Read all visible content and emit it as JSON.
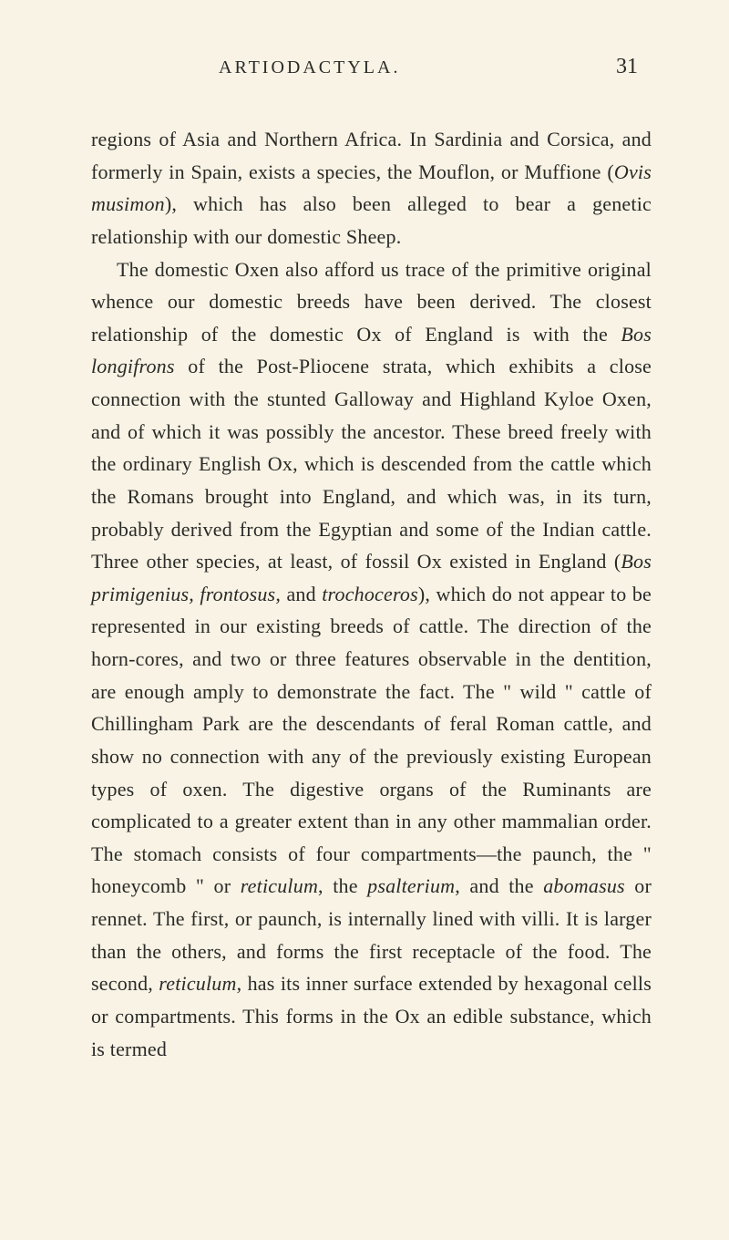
{
  "header": {
    "title": "ARTIODACTYLA.",
    "page_number": "31"
  },
  "paragraphs": {
    "p1_part1": "regions of Asia and Northern Africa. In Sardinia and Corsica, and formerly in Spain, exists a species, the Mouflon, or Muffione (",
    "p1_italic1": "Ovis musimon",
    "p1_part2": "), which has also been alleged to bear a genetic relationship with our domestic Sheep.",
    "p2_part1": "The domestic Oxen also afford us trace of the primi­tive original whence our domestic breeds have been derived. The closest relationship of the domestic Ox of England is with the ",
    "p2_italic1": "Bos longifrons",
    "p2_part2": " of the Post-Pliocene strata, which exhibits a close connection with the stunted Galloway and Highland Kyloe Oxen, and of which it was possibly the ancestor. These breed freely with the ordinary English Ox, which is descended from the cattle which the Romans brought into England, and which was, in its turn, probably derived from the Egyp­tian and some of the Indian cattle. Three other species, at least, of fossil Ox existed in England (",
    "p2_italic2": "Bos primigenius, frontosus,",
    "p2_part3": " and ",
    "p2_italic3": "trochoceros",
    "p2_part4": "), which do not appear to be represented in our existing breeds of cattle. The direc­tion of the horn-cores, and two or three features observ­able in the dentition, are enough amply to demonstrate the fact. The \" wild \" cattle of Chillingham Park are the descendants of feral Roman cattle, and show no connection with any of the previously existing Euro­pean types of oxen. The digestive organs of the Ruminants are complicated to a greater extent than in any other mammalian order. The stomach consists of four compartments—the paunch, the \" honeycomb \" or ",
    "p2_italic4": "reticulum",
    "p2_part5": ", the ",
    "p2_italic5": "psalterium",
    "p2_part6": ", and the ",
    "p2_italic6": "abomasus",
    "p2_part7": " or rennet. The first, or paunch, is internally lined with villi. It is larger than the others, and forms the first receptacle of the food. The second, ",
    "p2_italic7": "reticulum",
    "p2_part8": ", has its inner surface extended by hexagonal cells or compartments. This forms in the Ox an edible substance, which is termed"
  },
  "colors": {
    "background": "#f8f3e4",
    "text": "#2a2a28"
  },
  "typography": {
    "body_fontsize": 22,
    "header_fontsize": 20,
    "pagenum_fontsize": 24,
    "line_height": 1.62
  }
}
